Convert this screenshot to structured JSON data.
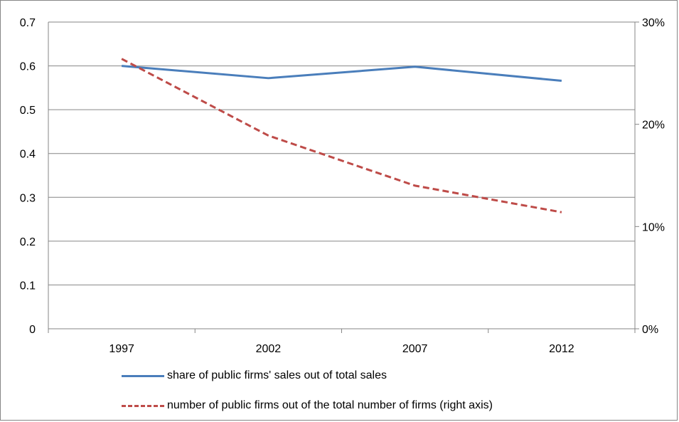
{
  "chart_data": {
    "type": "line",
    "categories": [
      "1997",
      "2002",
      "2007",
      "2012"
    ],
    "y_left": {
      "ylim": [
        0,
        0.7
      ],
      "ticks": [
        "0",
        "0.1",
        "0.2",
        "0.3",
        "0.4",
        "0.5",
        "0.6",
        "0.7"
      ]
    },
    "y_right": {
      "ylim": [
        0,
        0.3
      ],
      "ticks": [
        "0%",
        "10%",
        "20%",
        "30%"
      ]
    },
    "grid": "horizontal",
    "legend_position": "bottom",
    "series": [
      {
        "name": "share of public firms' sales out of total sales",
        "axis": "left",
        "style": "solid",
        "color": "#4a7ebb",
        "values": [
          0.6,
          0.572,
          0.598,
          0.566
        ]
      },
      {
        "name": "number of public firms out of the total number of firms (right axis)",
        "axis": "right",
        "style": "dashed",
        "color": "#be4b48",
        "values": [
          0.264,
          0.189,
          0.14,
          0.114
        ]
      }
    ]
  }
}
